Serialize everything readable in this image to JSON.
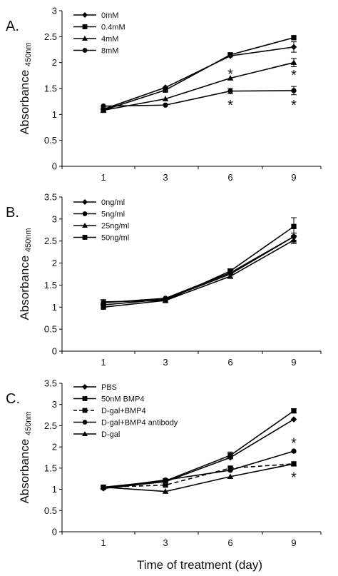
{
  "figure": {
    "x_axis_title": "Time of treatment (day)",
    "y_axis_label_main": "Absorbance",
    "y_axis_label_sub": "450nm"
  },
  "chart_data": [
    {
      "type": "line",
      "panel_label": "A.",
      "x": [
        1,
        3,
        6,
        9
      ],
      "ylim": [
        0,
        3
      ],
      "yticks": [
        "0",
        "0.5",
        "1",
        "1.5",
        "2",
        "2.5",
        "3"
      ],
      "xticks": [
        "1",
        "3",
        "6",
        "9"
      ],
      "legend_position": "top-left",
      "series": [
        {
          "name": "0mM",
          "marker": "diamond",
          "dashed": false,
          "values": [
            1.1,
            1.52,
            2.13,
            2.3
          ],
          "error": [
            0,
            0,
            0,
            0.1
          ]
        },
        {
          "name": "0.4mM",
          "marker": "square",
          "dashed": false,
          "values": [
            1.08,
            1.47,
            2.15,
            2.48
          ],
          "error": [
            0,
            0,
            0,
            0
          ]
        },
        {
          "name": "4mM",
          "marker": "triangle",
          "dashed": false,
          "values": [
            1.08,
            1.3,
            1.7,
            2.0
          ],
          "error": [
            0,
            0,
            0,
            0.08
          ]
        },
        {
          "name": "8mM",
          "marker": "circle",
          "dashed": false,
          "values": [
            1.16,
            1.18,
            1.45,
            1.46
          ],
          "error": [
            0,
            0,
            0.05,
            0.08
          ]
        }
      ],
      "annotations": [
        {
          "text": "*",
          "x": 6,
          "y": 1.85
        },
        {
          "text": "*",
          "x": 6,
          "y": 1.25
        },
        {
          "text": "*",
          "x": 9,
          "y": 1.83
        },
        {
          "text": "*",
          "x": 9,
          "y": 1.25
        }
      ]
    },
    {
      "type": "line",
      "panel_label": "B.",
      "x": [
        1,
        3,
        6,
        9
      ],
      "ylim": [
        0,
        3.5
      ],
      "yticks": [
        "0",
        "0.5",
        "1",
        "1.5",
        "2",
        "2.5",
        "3",
        "3.5"
      ],
      "xticks": [
        "1",
        "3",
        "6",
        "9"
      ],
      "legend_position": "top-left",
      "series": [
        {
          "name": "0ng/ml",
          "marker": "diamond",
          "dashed": false,
          "values": [
            1.05,
            1.18,
            1.75,
            2.6
          ],
          "error": [
            0,
            0,
            0,
            0.08
          ]
        },
        {
          "name": "5ng/ml",
          "marker": "circle",
          "dashed": false,
          "values": [
            1.1,
            1.2,
            1.78,
            2.6
          ],
          "error": [
            0.05,
            0,
            0.05,
            0.08
          ]
        },
        {
          "name": "25ng/ml",
          "marker": "triangle",
          "dashed": false,
          "values": [
            1.12,
            1.15,
            1.7,
            2.52
          ],
          "error": [
            0.05,
            0,
            0.05,
            0.08
          ]
        },
        {
          "name": "50ng/ml",
          "marker": "square",
          "dashed": false,
          "values": [
            1.0,
            1.15,
            1.82,
            2.83
          ],
          "error": [
            0,
            0,
            0.05,
            0.2
          ]
        }
      ],
      "annotations": []
    },
    {
      "type": "line",
      "panel_label": "C.",
      "x": [
        1,
        3,
        6,
        9
      ],
      "ylim": [
        0,
        3.5
      ],
      "yticks": [
        "0",
        "0.5",
        "1",
        "1.5",
        "2",
        "2.5",
        "3",
        "3.5"
      ],
      "xticks": [
        "1",
        "3",
        "6",
        "9"
      ],
      "legend_position": "top-left",
      "series": [
        {
          "name": "PBS",
          "marker": "diamond",
          "dashed": false,
          "values": [
            1.02,
            1.18,
            1.75,
            2.65
          ],
          "error": [
            0,
            0,
            0,
            0
          ]
        },
        {
          "name": "50nM BMP4",
          "marker": "square",
          "dashed": false,
          "values": [
            1.05,
            1.2,
            1.8,
            2.85
          ],
          "error": [
            0,
            0,
            0.08,
            0.05
          ]
        },
        {
          "name": "D-gal+BMP4",
          "marker": "square",
          "dashed": true,
          "values": [
            1.05,
            1.1,
            1.5,
            1.6
          ],
          "error": [
            0,
            0,
            0,
            0
          ]
        },
        {
          "name": "D-gal+BMP4 antibody",
          "marker": "circle",
          "dashed": false,
          "values": [
            1.03,
            1.22,
            1.45,
            1.9
          ],
          "error": [
            0,
            0,
            0,
            0
          ]
        },
        {
          "name": "D-gal",
          "marker": "triangle",
          "dashed": false,
          "values": [
            1.05,
            0.95,
            1.3,
            1.6
          ],
          "error": [
            0,
            0,
            0,
            0
          ]
        }
      ],
      "annotations": [
        {
          "text": "*",
          "x": 9,
          "y": 2.18
        },
        {
          "text": "*",
          "x": 9,
          "y": 1.37
        }
      ]
    }
  ]
}
